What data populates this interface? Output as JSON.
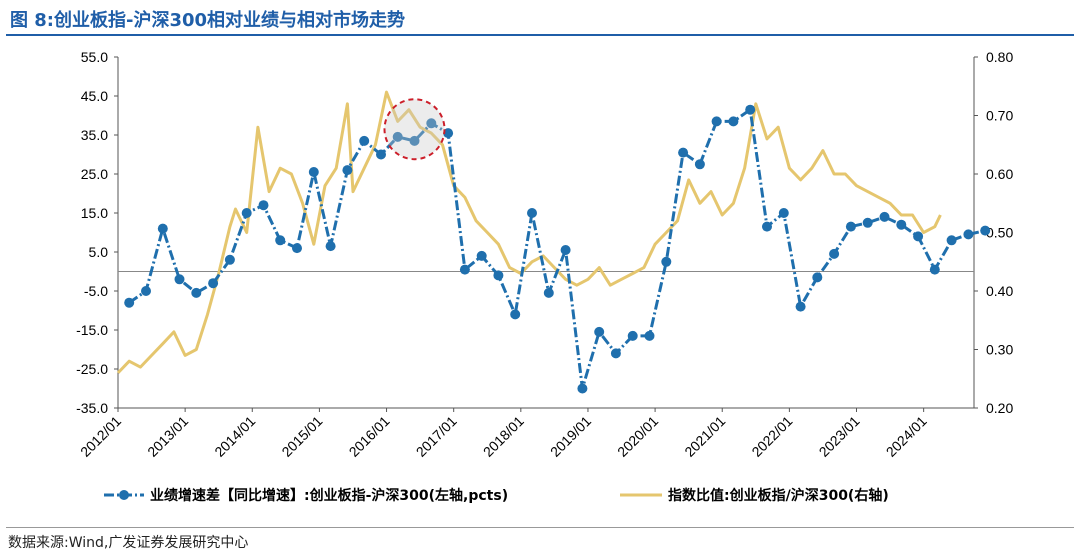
{
  "header": {
    "title": "图 8:创业板指-沪深300相对业绩与相对市场走势"
  },
  "footer": {
    "source": "数据来源:Wind,广发证券发展研究中心"
  },
  "chart_data": {
    "type": "line",
    "left_axis": {
      "range": [
        -35,
        55
      ],
      "ticks": [
        "55.0",
        "45.0",
        "35.0",
        "25.0",
        "15.0",
        "5.0",
        "-5.0",
        "-15.0",
        "-25.0",
        "-35.0"
      ]
    },
    "right_axis": {
      "range": [
        0.2,
        0.8
      ],
      "ticks": [
        "0.80",
        "0.70",
        "0.60",
        "0.50",
        "0.40",
        "0.30",
        "0.20"
      ]
    },
    "x_axis": {
      "range": [
        "2012/01",
        "2024/10"
      ],
      "ticks": [
        "2012/01",
        "2013/01",
        "2014/01",
        "2015/01",
        "2016/01",
        "2017/01",
        "2018/01",
        "2019/01",
        "2020/01",
        "2021/01",
        "2022/01",
        "2023/01",
        "2024/01"
      ]
    },
    "series": [
      {
        "name": "业绩增速差【同比增速】:创业板指-沪深300(左轴,pcts)",
        "axis": "left",
        "color": "#1f6fad",
        "style": "dashed-markers",
        "points": [
          [
            "2012/03",
            -8
          ],
          [
            "2012/06",
            -5
          ],
          [
            "2012/09",
            11
          ],
          [
            "2012/12",
            -2
          ],
          [
            "2013/03",
            -5.5
          ],
          [
            "2013/06",
            -3
          ],
          [
            "2013/09",
            3
          ],
          [
            "2013/12",
            15
          ],
          [
            "2014/03",
            17
          ],
          [
            "2014/06",
            8
          ],
          [
            "2014/09",
            6
          ],
          [
            "2014/12",
            25.5
          ],
          [
            "2015/03",
            6.5
          ],
          [
            "2015/06",
            26
          ],
          [
            "2015/09",
            33.5
          ],
          [
            "2015/12",
            30
          ],
          [
            "2016/03",
            34.5
          ],
          [
            "2016/06",
            33.5
          ],
          [
            "2016/09",
            38
          ],
          [
            "2016/12",
            35.5
          ],
          [
            "2017/03",
            0.5
          ],
          [
            "2017/06",
            4
          ],
          [
            "2017/09",
            -1
          ],
          [
            "2017/12",
            -11
          ],
          [
            "2018/03",
            15
          ],
          [
            "2018/06",
            -5.5
          ],
          [
            "2018/09",
            5.5
          ],
          [
            "2018/12",
            -30
          ],
          [
            "2019/03",
            -15.5
          ],
          [
            "2019/06",
            -21
          ],
          [
            "2019/09",
            -16.5
          ],
          [
            "2019/12",
            -16.5
          ],
          [
            "2020/03",
            2.5
          ],
          [
            "2020/06",
            30.5
          ],
          [
            "2020/09",
            27.5
          ],
          [
            "2020/12",
            38.5
          ],
          [
            "2021/03",
            38.5
          ],
          [
            "2021/06",
            41.5
          ],
          [
            "2021/09",
            11.5
          ],
          [
            "2021/12",
            15
          ],
          [
            "2022/03",
            -9
          ],
          [
            "2022/06",
            -1.5
          ],
          [
            "2022/09",
            4.5
          ],
          [
            "2022/12",
            11.5
          ],
          [
            "2023/03",
            12.5
          ],
          [
            "2023/06",
            14
          ],
          [
            "2023/09",
            12
          ],
          [
            "2023/12",
            9
          ],
          [
            "2024/03",
            0.5
          ],
          [
            "2024/06",
            8
          ],
          [
            "2024/09",
            9.5
          ],
          [
            "2024/12",
            10.5
          ]
        ]
      },
      {
        "name": "指数比值:创业板指/沪深300(右轴)",
        "axis": "right",
        "color": "#e5c66e",
        "style": "solid",
        "points": [
          [
            "2012/01",
            0.26
          ],
          [
            "2012/03",
            0.28
          ],
          [
            "2012/05",
            0.27
          ],
          [
            "2012/07",
            0.29
          ],
          [
            "2012/09",
            0.31
          ],
          [
            "2012/11",
            0.33
          ],
          [
            "2013/01",
            0.29
          ],
          [
            "2013/03",
            0.3
          ],
          [
            "2013/05",
            0.36
          ],
          [
            "2013/07",
            0.43
          ],
          [
            "2013/09",
            0.51
          ],
          [
            "2013/10",
            0.54
          ],
          [
            "2013/12",
            0.5
          ],
          [
            "2014/02",
            0.68
          ],
          [
            "2014/04",
            0.57
          ],
          [
            "2014/06",
            0.61
          ],
          [
            "2014/08",
            0.6
          ],
          [
            "2014/10",
            0.55
          ],
          [
            "2014/12",
            0.48
          ],
          [
            "2015/02",
            0.58
          ],
          [
            "2015/04",
            0.61
          ],
          [
            "2015/06",
            0.72
          ],
          [
            "2015/07",
            0.57
          ],
          [
            "2015/09",
            0.61
          ],
          [
            "2015/11",
            0.65
          ],
          [
            "2016/01",
            0.74
          ],
          [
            "2016/03",
            0.69
          ],
          [
            "2016/05",
            0.71
          ],
          [
            "2016/07",
            0.68
          ],
          [
            "2016/09",
            0.67
          ],
          [
            "2016/11",
            0.65
          ],
          [
            "2017/01",
            0.58
          ],
          [
            "2017/03",
            0.56
          ],
          [
            "2017/05",
            0.52
          ],
          [
            "2017/07",
            0.5
          ],
          [
            "2017/09",
            0.48
          ],
          [
            "2017/11",
            0.44
          ],
          [
            "2018/01",
            0.43
          ],
          [
            "2018/03",
            0.45
          ],
          [
            "2018/05",
            0.46
          ],
          [
            "2018/07",
            0.44
          ],
          [
            "2018/09",
            0.42
          ],
          [
            "2018/11",
            0.41
          ],
          [
            "2019/01",
            0.42
          ],
          [
            "2019/03",
            0.44
          ],
          [
            "2019/05",
            0.41
          ],
          [
            "2019/07",
            0.42
          ],
          [
            "2019/09",
            0.43
          ],
          [
            "2019/11",
            0.44
          ],
          [
            "2020/01",
            0.48
          ],
          [
            "2020/03",
            0.5
          ],
          [
            "2020/05",
            0.52
          ],
          [
            "2020/07",
            0.59
          ],
          [
            "2020/09",
            0.55
          ],
          [
            "2020/11",
            0.57
          ],
          [
            "2021/01",
            0.53
          ],
          [
            "2021/03",
            0.55
          ],
          [
            "2021/05",
            0.61
          ],
          [
            "2021/07",
            0.72
          ],
          [
            "2021/09",
            0.66
          ],
          [
            "2021/11",
            0.68
          ],
          [
            "2022/01",
            0.61
          ],
          [
            "2022/03",
            0.59
          ],
          [
            "2022/05",
            0.61
          ],
          [
            "2022/07",
            0.64
          ],
          [
            "2022/09",
            0.6
          ],
          [
            "2022/11",
            0.6
          ],
          [
            "2023/01",
            0.58
          ],
          [
            "2023/03",
            0.57
          ],
          [
            "2023/05",
            0.56
          ],
          [
            "2023/07",
            0.55
          ],
          [
            "2023/09",
            0.53
          ],
          [
            "2023/11",
            0.53
          ],
          [
            "2024/01",
            0.5
          ],
          [
            "2024/03",
            0.51
          ],
          [
            "2024/04",
            0.53
          ]
        ]
      }
    ],
    "annotation": {
      "type": "dashed-circle",
      "color": "#cc1f2a",
      "around": "2016/06"
    },
    "zero_line": true,
    "grid": false,
    "legend": "bottom"
  }
}
